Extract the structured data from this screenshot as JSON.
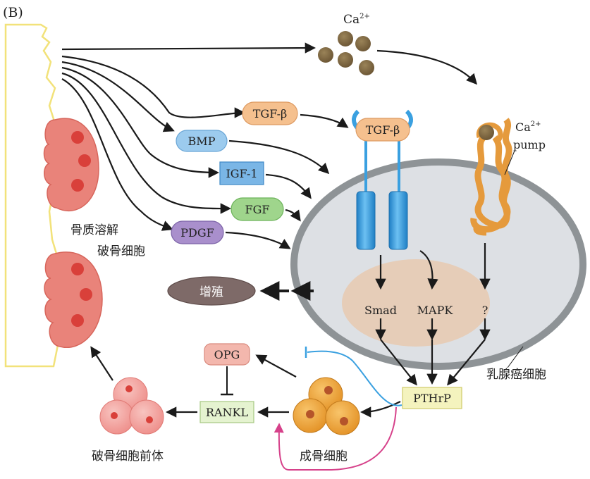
{
  "panel_label": "(B)",
  "ions": {
    "calcium": "Ca",
    "calcium_charge": "2+"
  },
  "pump": {
    "ion": "Ca",
    "ion_charge": "2+",
    "word": "pump"
  },
  "factors": {
    "tgf_beta": "TGF-β",
    "receptor_tgf_beta": "TGF-β",
    "bmp": "BMP",
    "igf1": "IGF-1",
    "fgf": "FGF",
    "pdgf": "PDGF"
  },
  "pathways": {
    "smad": "Smad",
    "mapk": "MAPK",
    "unknown": "?"
  },
  "nodes": {
    "pthrp": "PTHrP",
    "opg": "OPG",
    "rankl": "RANKL",
    "proliferation": "增殖"
  },
  "labels": {
    "bone_resorption": "骨质溶解",
    "osteoclast": "破骨细胞",
    "osteoclast_precursor": "破骨细胞前体",
    "osteoblast": "成骨细胞",
    "breast_cancer_cell": "乳腺癌细胞"
  },
  "colors": {
    "bone_outline": "#f2e27a",
    "osteoclast_fill": "#e9837a",
    "osteoclast_nucleus": "#d9403a",
    "cell_fill": "#dde0e4",
    "cell_border": "#8e9396",
    "nucleus_fill": "#e6cdb8",
    "receptor_blue": "#3aa0e0",
    "pump_orange": "#e59a3c",
    "calcium_brown": "#7d6540",
    "tgf_box": "#f5c08e",
    "bmp_box": "#9ccbee",
    "igf_box": "#7ab6e6",
    "fgf_box": "#9fd58c",
    "pdgf_box": "#a98fcc",
    "proliferation_box": "#7e6a68",
    "pthrp_box": "#f4f3be",
    "opg_box": "#f3b7ad",
    "rankl_box": "#e5f3d0",
    "osteoblast_fill": "#f0a536",
    "osteoblast_nucleus": "#b5542a",
    "precursor_fill": "#f1a3a0",
    "precursor_nucleus": "#d9403a",
    "inhibit_blue": "#3aa0e0",
    "activate_pink": "#d6418a"
  }
}
